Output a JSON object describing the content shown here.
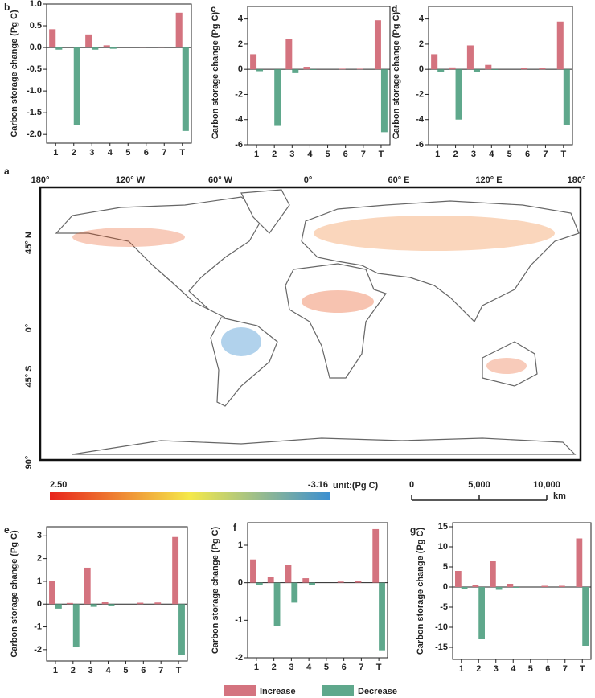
{
  "chart_data": [
    {
      "type": "bar",
      "panel": "b",
      "ylabel": "Carbon storage change (Pg C)",
      "categories": [
        "1",
        "2",
        "3",
        "4",
        "5",
        "6",
        "7",
        "T"
      ],
      "series": [
        {
          "name": "Increase",
          "color": "#d4737f",
          "values": [
            0.42,
            0,
            0.3,
            0.05,
            0,
            0.01,
            0.02,
            0.8
          ]
        },
        {
          "name": "Decrease",
          "color": "#5fa88c",
          "values": [
            -0.05,
            -1.78,
            -0.05,
            -0.03,
            0,
            0,
            0,
            -1.92
          ]
        }
      ],
      "ylim": [
        -2.2,
        1.0
      ],
      "yticks": [
        {
          "value": 1,
          "label": "1.0"
        },
        {
          "value": 0.5,
          "label": "0.5"
        },
        {
          "value": 0,
          "label": "0.0"
        },
        {
          "value": -0.5,
          "label": "-0.5"
        },
        {
          "value": -1,
          "label": "-1.0"
        },
        {
          "value": -1.5,
          "label": "-1.5"
        },
        {
          "value": -2,
          "label": "-2.0"
        }
      ]
    },
    {
      "type": "bar",
      "panel": "c",
      "ylabel": "Carbon storage change (Pg C)",
      "categories": [
        "1",
        "2",
        "3",
        "4",
        "5",
        "6",
        "7",
        "T"
      ],
      "series": [
        {
          "name": "Increase",
          "color": "#d4737f",
          "values": [
            1.2,
            0,
            2.4,
            0.2,
            0,
            0.05,
            0.05,
            3.9
          ]
        },
        {
          "name": "Decrease",
          "color": "#5fa88c",
          "values": [
            -0.15,
            -4.5,
            -0.3,
            -0.05,
            0,
            0,
            0,
            -5
          ]
        }
      ],
      "ylim": [
        -6,
        5
      ],
      "yticks": [
        4,
        2,
        0,
        -2,
        -4,
        -6
      ]
    },
    {
      "type": "bar",
      "panel": "d",
      "ylabel": "Carbon storage change (Pg C)",
      "categories": [
        "1",
        "2",
        "3",
        "4",
        "5",
        "6",
        "7",
        "T"
      ],
      "series": [
        {
          "name": "Increase",
          "color": "#d4737f",
          "values": [
            1.2,
            0.15,
            1.9,
            0.35,
            0,
            0.1,
            0.1,
            3.8
          ]
        },
        {
          "name": "Decrease",
          "color": "#5fa88c",
          "values": [
            -0.2,
            -4,
            -0.2,
            -0.05,
            0,
            0,
            0,
            -4.4
          ]
        }
      ],
      "ylim": [
        -6,
        5
      ],
      "yticks": [
        4,
        2,
        0,
        -2,
        -4,
        -6
      ]
    },
    {
      "type": "bar",
      "panel": "e",
      "ylabel": "Carbon storage change (Pg C)",
      "categories": [
        "1",
        "2",
        "3",
        "4",
        "5",
        "6",
        "7",
        "T"
      ],
      "series": [
        {
          "name": "Increase",
          "color": "#d4737f",
          "values": [
            1.0,
            0.05,
            1.6,
            0.08,
            0,
            0.06,
            0.07,
            2.95
          ]
        },
        {
          "name": "Decrease",
          "color": "#5fa88c",
          "values": [
            -0.2,
            -1.9,
            -0.12,
            -0.06,
            0,
            0,
            0,
            -2.25
          ]
        }
      ],
      "ylim": [
        -2.5,
        3.4
      ],
      "yticks": [
        3,
        2,
        1,
        0,
        -1,
        -2
      ]
    },
    {
      "type": "bar",
      "panel": "f",
      "ylabel": "Carbon storage change (Pg C)",
      "categories": [
        "1",
        "2",
        "3",
        "4",
        "5",
        "6",
        "7",
        "T"
      ],
      "series": [
        {
          "name": "Increase",
          "color": "#d4737f",
          "values": [
            0.62,
            0.15,
            0.48,
            0.12,
            0,
            0.03,
            0.04,
            1.43
          ]
        },
        {
          "name": "Decrease",
          "color": "#5fa88c",
          "values": [
            -0.05,
            -1.15,
            -0.53,
            -0.07,
            0,
            0,
            0,
            -1.8
          ]
        }
      ],
      "ylim": [
        -2,
        1.6
      ],
      "yticks": [
        1,
        0,
        -1,
        -2
      ]
    },
    {
      "type": "bar",
      "panel": "g",
      "ylabel": "Carbon storage change (Pg C)",
      "categories": [
        "1",
        "2",
        "3",
        "4",
        "5",
        "6",
        "7",
        "T"
      ],
      "series": [
        {
          "name": "Increase",
          "color": "#d4737f",
          "values": [
            4,
            0.5,
            6.4,
            0.8,
            0,
            0.3,
            0.3,
            12.1
          ]
        },
        {
          "name": "Decrease",
          "color": "#5fa88c",
          "values": [
            -0.5,
            -13,
            -0.7,
            -0.2,
            0,
            0,
            0,
            -14.6
          ]
        }
      ],
      "ylim": [
        -18,
        16
      ],
      "yticks": [
        15,
        10,
        5,
        0,
        -5,
        -10,
        -15
      ]
    }
  ],
  "map": {
    "panel": "a",
    "lon_labels": [
      "180°",
      "120° W",
      "60° W",
      "0°",
      "60° E",
      "120° E",
      "180°"
    ],
    "lat_labels": [
      "45° N",
      "0°",
      "45° S",
      "90°"
    ],
    "colorbar": {
      "max": {
        "value": 2.5,
        "label": "2.50"
      },
      "min": -3.16,
      "unit": "unit:(Pg C)",
      "colors": [
        "#e8231c",
        "#f5e94a",
        "#3c8fd0"
      ]
    },
    "scalebar": {
      "ticks": [
        0,
        {
          "value": 5000,
          "label": "5,000"
        },
        {
          "value": 10000,
          "label": "10,000"
        }
      ],
      "unit": "km"
    }
  }
}
